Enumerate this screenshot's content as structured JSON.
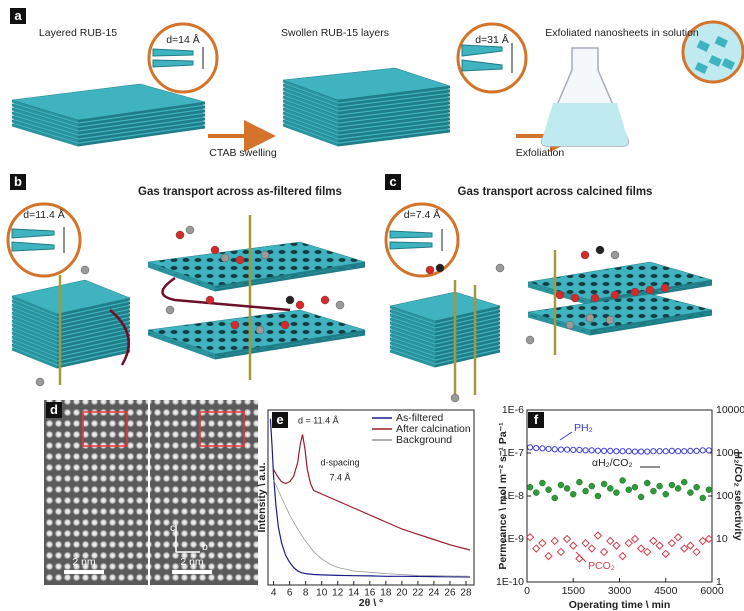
{
  "panel_a": {
    "label": "a",
    "stages": [
      "Layered RUB-15",
      "Swollen RUB-15 layers",
      "Exfoliated nanosheets in solution"
    ],
    "steps": [
      "CTAB swelling",
      "Exfoliation"
    ],
    "insets": [
      "d=14 Å",
      "d=31 Å"
    ]
  },
  "panel_b": {
    "label": "b",
    "title": "Gas transport across as-filtered films",
    "inset": "d=11.4 Å"
  },
  "panel_c": {
    "label": "c",
    "title": "Gas transport across calcined films",
    "inset": "d=7.4 Å"
  },
  "panel_d": {
    "label": "d",
    "scale_bars": [
      "2 nm",
      "2 nm"
    ],
    "axes": [
      "c",
      "b"
    ]
  },
  "chart_data": [
    {
      "type": "line",
      "panel_label": "e",
      "xlabel": "2θ \\ °",
      "ylabel": "Intensity \\ a.u.",
      "annotations": [
        "d = 11.4 Å",
        "d-spacing",
        "7.4 Å"
      ],
      "xlim": [
        3.3,
        29
      ],
      "xticks": [
        4,
        6,
        8,
        10,
        12,
        14,
        16,
        18,
        20,
        22,
        24,
        26,
        28
      ],
      "ylim": [
        0,
        100
      ],
      "legend": "upper right",
      "series": [
        {
          "name": "As-filtered",
          "color": "#1c1c8c",
          "x": [
            3.6,
            3.8,
            4,
            4.3,
            4.6,
            5,
            5.5,
            6,
            6.5,
            7,
            7.5,
            8,
            9,
            10,
            12,
            14,
            16,
            18,
            20,
            22,
            24,
            26,
            28.5
          ],
          "values": [
            95,
            80,
            62,
            45,
            33,
            24,
            17,
            13,
            10,
            8,
            7,
            6.5,
            6,
            5.8,
            5.5,
            5.3,
            5.2,
            5,
            5,
            4.9,
            4.8,
            4.7,
            4.6
          ]
        },
        {
          "name": "After calcination",
          "color": "#9c1c2a",
          "x": [
            4,
            4.5,
            5,
            5.5,
            6,
            6.5,
            7,
            7.3,
            7.6,
            7.9,
            8.2,
            8.6,
            9,
            10,
            11,
            12,
            14,
            16,
            18,
            20,
            22,
            24,
            26,
            28.5
          ],
          "values": [
            66,
            62,
            59,
            58,
            59,
            62,
            70,
            80,
            86,
            78,
            66,
            58,
            54,
            52,
            50,
            48,
            44,
            40,
            36,
            32,
            29,
            26,
            23,
            20
          ]
        },
        {
          "name": "Background",
          "color": "#999999",
          "x": [
            4,
            5,
            6,
            7,
            8,
            9,
            10,
            11,
            12,
            14,
            18,
            22,
            28.5
          ],
          "values": [
            60,
            50,
            40,
            32,
            25,
            19,
            15,
            12,
            10,
            8,
            6.5,
            5.5,
            5
          ]
        }
      ]
    },
    {
      "type": "scatter",
      "panel_label": "f",
      "xlabel": "Operating time \\ min",
      "ylabel": "Permeance \\ mol m⁻² s⁻¹ Pa⁻¹",
      "y2label": "H₂/CO₂ selectivity",
      "x": [
        100,
        300,
        500,
        700,
        900,
        1100,
        1300,
        1500,
        1700,
        1900,
        2100,
        2300,
        2500,
        2700,
        2900,
        3100,
        3300,
        3500,
        3700,
        3900,
        4100,
        4300,
        4500,
        4700,
        4900,
        5100,
        5300,
        5500,
        5700,
        5900
      ],
      "xlim": [
        0,
        6000
      ],
      "xticks": [
        0,
        1500,
        3000,
        4500,
        6000
      ],
      "ylim": [
        1e-10,
        1e-06
      ],
      "yticks": [
        {
          "value": 1e-10,
          "label": "1E-10"
        },
        {
          "value": 1e-09,
          "label": "1E-9"
        },
        {
          "value": 1e-08,
          "label": "1E-8"
        },
        {
          "value": 1e-07,
          "label": "1E-7"
        },
        {
          "value": 1e-06,
          "label": "1E-6"
        }
      ],
      "y2lim": [
        1,
        10000
      ],
      "y2ticks": [
        1,
        10,
        100,
        1000,
        10000
      ],
      "log_y": true,
      "log_y2": true,
      "series": [
        {
          "name": "PH₂",
          "color": "#3a3ad8",
          "marker": "circle",
          "values": [
            1.35e-07,
            1.3e-07,
            1.28e-07,
            1.25e-07,
            1.22e-07,
            1.2e-07,
            1.2e-07,
            1.18e-07,
            1.18e-07,
            1.15e-07,
            1.15e-07,
            1.13e-07,
            1.12e-07,
            1.12e-07,
            1.1e-07,
            1.1e-07,
            1.1e-07,
            1.08e-07,
            1.08e-07,
            1.08e-07,
            1.1e-07,
            1.1e-07,
            1.1e-07,
            1.12e-07,
            1.1e-07,
            1.1e-07,
            1.12e-07,
            1.12e-07,
            1.15e-07,
            1.15e-07
          ]
        },
        {
          "name": "αH₂/CO₂",
          "color": "#2e9a3a",
          "marker": "circle",
          "axis": "y2",
          "values": [
            160,
            120,
            200,
            140,
            90,
            180,
            150,
            110,
            210,
            130,
            170,
            100,
            190,
            150,
            120,
            230,
            140,
            160,
            95,
            200,
            130,
            170,
            110,
            180,
            150,
            210,
            120,
            160,
            90,
            140
          ]
        },
        {
          "name": "PCO₂",
          "color": "#d63b4a",
          "marker": "diamond",
          "values": [
            1.1e-09,
            6e-10,
            8e-10,
            4e-10,
            9e-10,
            5e-10,
            1e-09,
            7e-10,
            3.5e-10,
            8e-10,
            6e-10,
            1.2e-09,
            5e-10,
            9e-10,
            7e-10,
            4e-10,
            8e-10,
            1e-09,
            6e-10,
            5e-10,
            9e-10,
            7e-10,
            4.5e-10,
            8e-10,
            1.1e-09,
            6e-10,
            7e-10,
            5e-10,
            9e-10,
            1e-09
          ]
        }
      ]
    }
  ]
}
